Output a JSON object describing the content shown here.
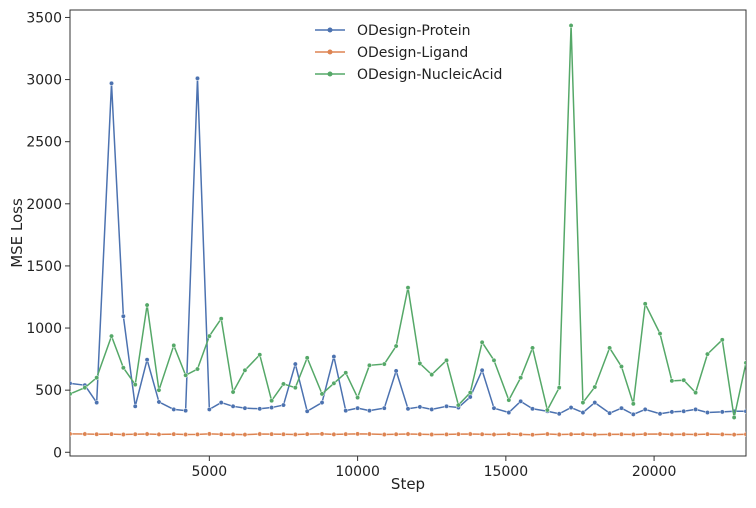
{
  "chart_data": {
    "type": "line",
    "title": "",
    "xlabel": "Step",
    "ylabel": "MSE Loss",
    "xlim": [
      300,
      23100
    ],
    "ylim": [
      -30,
      3560
    ],
    "xticks": [
      5000,
      10000,
      15000,
      20000
    ],
    "xtick_labels": [
      "5000",
      "10000",
      "15000",
      "20000"
    ],
    "yticks": [
      0,
      500,
      1000,
      1500,
      2000,
      2500,
      3000,
      3500
    ],
    "ytick_labels": [
      "0",
      "500",
      "1000",
      "1500",
      "2000",
      "2500",
      "3000",
      "3500"
    ],
    "grid": false,
    "legend_position": "top-center",
    "x": [
      300,
      800,
      1200,
      1700,
      2100,
      2500,
      2900,
      3300,
      3800,
      4200,
      4600,
      5000,
      5400,
      5800,
      6200,
      6700,
      7100,
      7500,
      7900,
      8300,
      8800,
      9200,
      9600,
      10000,
      10400,
      10900,
      11300,
      11700,
      12100,
      12500,
      13000,
      13400,
      13800,
      14200,
      14600,
      15100,
      15500,
      15900,
      16400,
      16800,
      17200,
      17600,
      18000,
      18500,
      18900,
      19300,
      19700,
      20200,
      20600,
      21000,
      21400,
      21800,
      22300,
      22700,
      23100
    ],
    "series": [
      {
        "name": "ODesign-Protein",
        "color": "#4c72b0",
        "values": [
          555,
          540,
          400,
          2970,
          1095,
          370,
          745,
          405,
          345,
          335,
          3010,
          345,
          400,
          370,
          355,
          350,
          360,
          380,
          710,
          330,
          400,
          770,
          335,
          355,
          335,
          355,
          655,
          350,
          365,
          345,
          370,
          360,
          445,
          660,
          355,
          320,
          410,
          350,
          330,
          310,
          360,
          320,
          400,
          315,
          355,
          305,
          345,
          310,
          325,
          330,
          345,
          320,
          325,
          330,
          330
        ]
      },
      {
        "name": "ODesign-Ligand",
        "color": "#dd8452",
        "values": [
          148,
          147,
          145,
          146,
          143,
          145,
          147,
          144,
          146,
          143,
          144,
          148,
          145,
          144,
          142,
          147,
          146,
          145,
          143,
          146,
          148,
          144,
          146,
          148,
          147,
          143,
          145,
          147,
          145,
          143,
          144,
          146,
          147,
          145,
          143,
          146,
          144,
          141,
          147,
          143,
          145,
          146,
          142,
          144,
          145,
          143,
          146,
          147,
          144,
          145,
          143,
          146,
          144,
          142,
          145
        ]
      },
      {
        "name": "ODesign-NucleicAcid",
        "color": "#55a868",
        "values": [
          470,
          520,
          600,
          935,
          680,
          545,
          1185,
          500,
          860,
          620,
          670,
          935,
          1075,
          485,
          660,
          785,
          415,
          550,
          520,
          760,
          470,
          555,
          640,
          440,
          700,
          710,
          855,
          1325,
          715,
          625,
          740,
          380,
          480,
          885,
          740,
          420,
          600,
          840,
          340,
          520,
          3435,
          400,
          525,
          840,
          690,
          390,
          1195,
          955,
          575,
          580,
          480,
          790,
          905,
          280,
          720
        ]
      }
    ]
  }
}
